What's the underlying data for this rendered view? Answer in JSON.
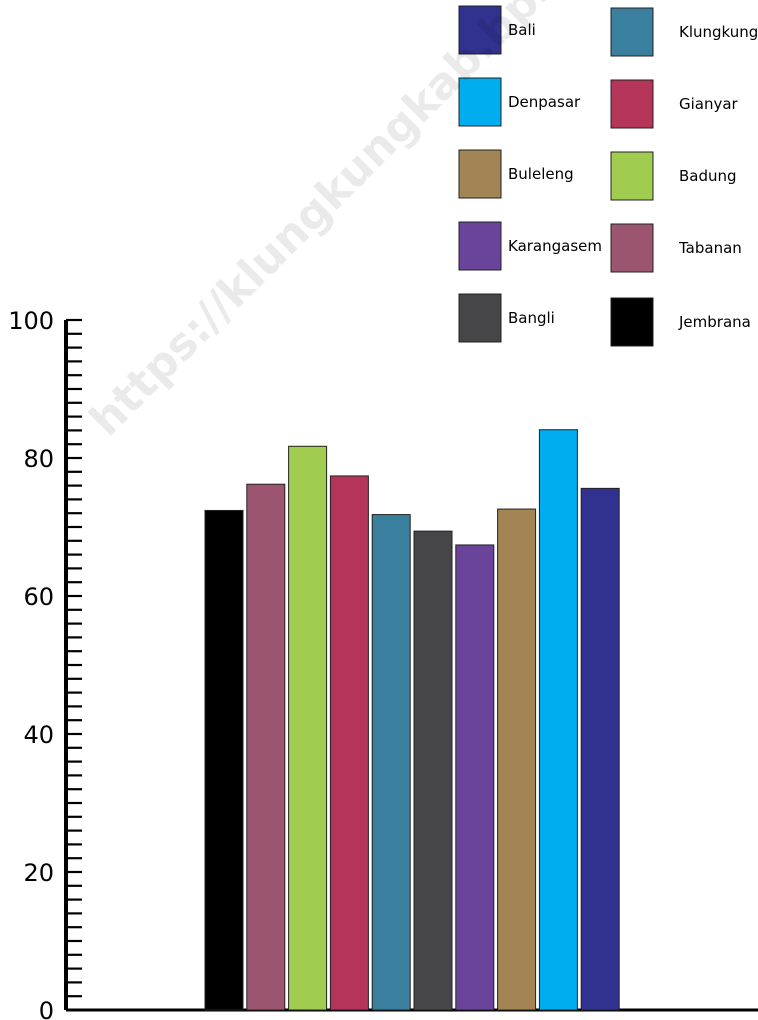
{
  "watermark": "https://klungkungkab.bps.go.id",
  "chart_data": {
    "type": "bar",
    "title": "",
    "xlabel": "",
    "ylabel": "",
    "ylim": [
      0,
      100
    ],
    "yticks": [
      0,
      20,
      40,
      60,
      80,
      100
    ],
    "grid": false,
    "legend_position": "top-right",
    "categories": [
      "Jembrana",
      "Tabanan",
      "Badung",
      "Gianyar",
      "Klungkung",
      "Bangli",
      "Karangasem",
      "Buleleng",
      "Denpasar",
      "Bali"
    ],
    "values": [
      72.4,
      76.2,
      81.7,
      77.4,
      71.8,
      69.4,
      67.4,
      72.6,
      84.1,
      75.6
    ],
    "colors": [
      "#000000",
      "#9c5570",
      "#a0cc50",
      "#b5345a",
      "#3a7f9e",
      "#464648",
      "#6a449a",
      "#a38454",
      "#00adef",
      "#31318f"
    ],
    "legend": [
      {
        "label": "Bali",
        "color": "#31318f"
      },
      {
        "label": "Klungkung",
        "color": "#3a7f9e"
      },
      {
        "label": "Denpasar",
        "color": "#00adef"
      },
      {
        "label": "Gianyar",
        "color": "#b5345a"
      },
      {
        "label": "Buleleng",
        "color": "#a38454"
      },
      {
        "label": "Badung",
        "color": "#a0cc50"
      },
      {
        "label": "Karangasem",
        "color": "#6a449a"
      },
      {
        "label": "Tabanan",
        "color": "#9c5570"
      },
      {
        "label": "Bangli",
        "color": "#464648"
      },
      {
        "label": "Jembrana",
        "color": "#000000"
      }
    ]
  }
}
